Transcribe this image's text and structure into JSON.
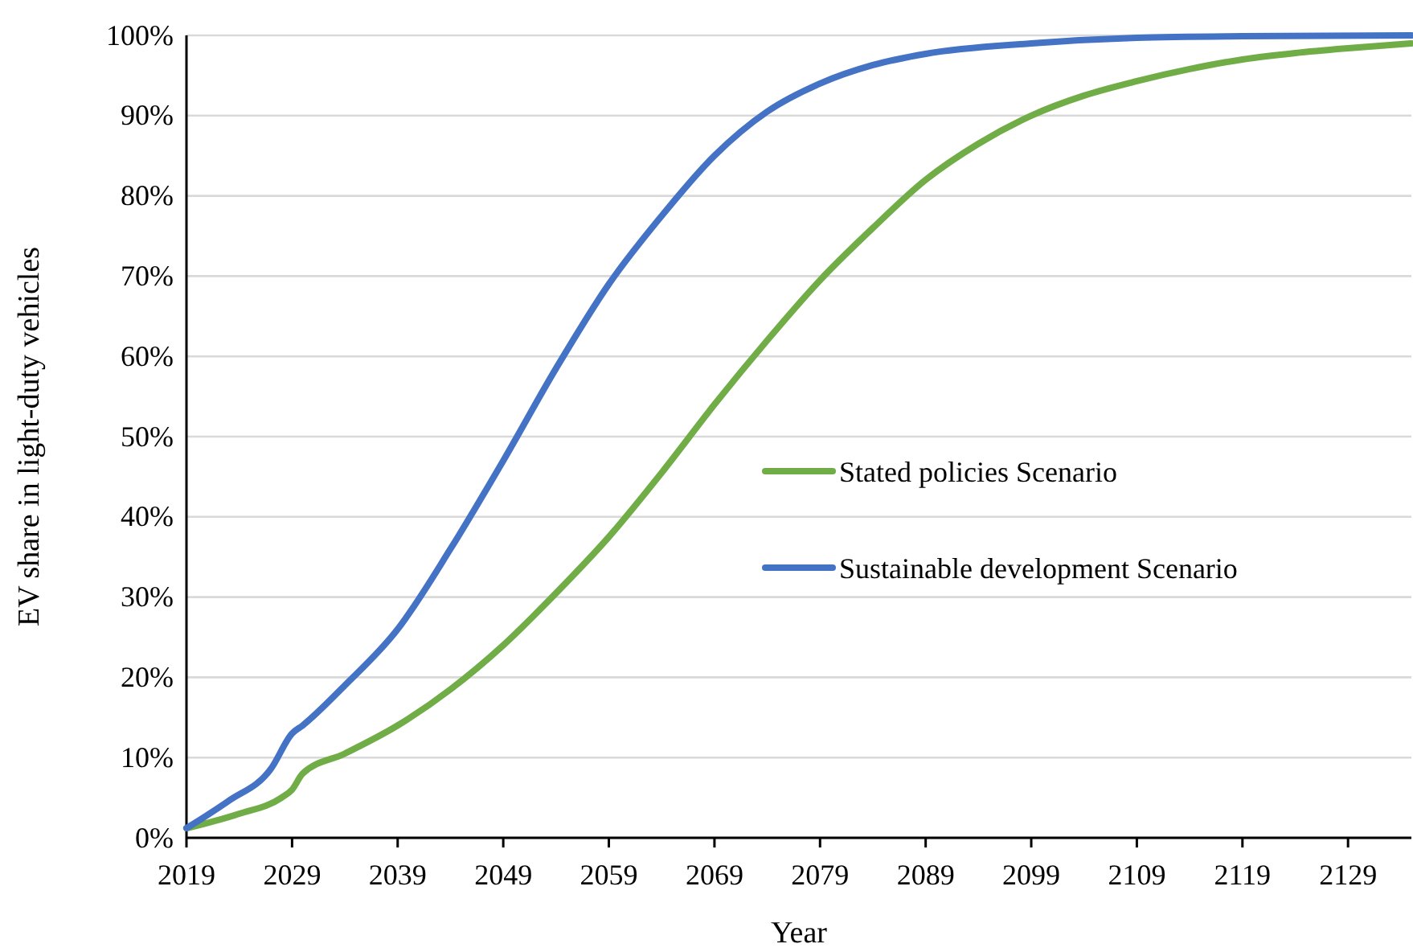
{
  "chart_data": {
    "type": "line",
    "xlabel": "Year",
    "ylabel": "EV share in light-duty vehicles",
    "xlim": [
      2019,
      2135
    ],
    "xticks": [
      2019,
      2029,
      2039,
      2049,
      2059,
      2069,
      2079,
      2089,
      2099,
      2109,
      2119,
      2129
    ],
    "ylim": [
      0,
      100
    ],
    "yticks": [
      {
        "value": 0,
        "label": "0%"
      },
      {
        "value": 10,
        "label": "10%"
      },
      {
        "value": 20,
        "label": "20%"
      },
      {
        "value": 30,
        "label": "30%"
      },
      {
        "value": 40,
        "label": "40%"
      },
      {
        "value": 50,
        "label": "50%"
      },
      {
        "value": 60,
        "label": "60%"
      },
      {
        "value": 70,
        "label": "70%"
      },
      {
        "value": 80,
        "label": "80%"
      },
      {
        "value": 90,
        "label": "90%"
      },
      {
        "value": 100,
        "label": "100%"
      }
    ],
    "grid": "y",
    "legend": "right",
    "line_style": "solid",
    "marker": "none",
    "series": [
      {
        "name": "Stated policies Scenario",
        "color": "#70ad47",
        "x": [
          2019,
          2024,
          2028,
          2029,
          2030,
          2034,
          2039,
          2044,
          2049,
          2054,
          2059,
          2064,
          2069,
          2074,
          2079,
          2084,
          2089,
          2094,
          2099,
          2104,
          2109,
          2114,
          2119,
          2124,
          2129,
          2135
        ],
        "values": [
          1.2,
          3,
          5,
          6,
          8,
          10.5,
          14,
          18.5,
          24,
          30.5,
          37.5,
          45.5,
          54,
          62,
          69.5,
          76,
          82,
          86.5,
          90,
          92.5,
          94.3,
          95.8,
          97,
          97.8,
          98.4,
          99
        ]
      },
      {
        "name": "Sustainable development Scenario",
        "color": "#4472c4",
        "x": [
          2019,
          2023,
          2027,
          2029,
          2030,
          2034,
          2039,
          2044,
          2049,
          2054,
          2059,
          2064,
          2069,
          2074,
          2079,
          2084,
          2089,
          2099,
          2109,
          2119,
          2135
        ],
        "values": [
          1.2,
          4.6,
          8.6,
          13,
          14,
          19,
          26,
          36,
          47,
          58.5,
          69,
          77.5,
          85,
          90.5,
          94,
          96.3,
          97.7,
          99,
          99.7,
          99.9,
          100
        ]
      }
    ]
  }
}
